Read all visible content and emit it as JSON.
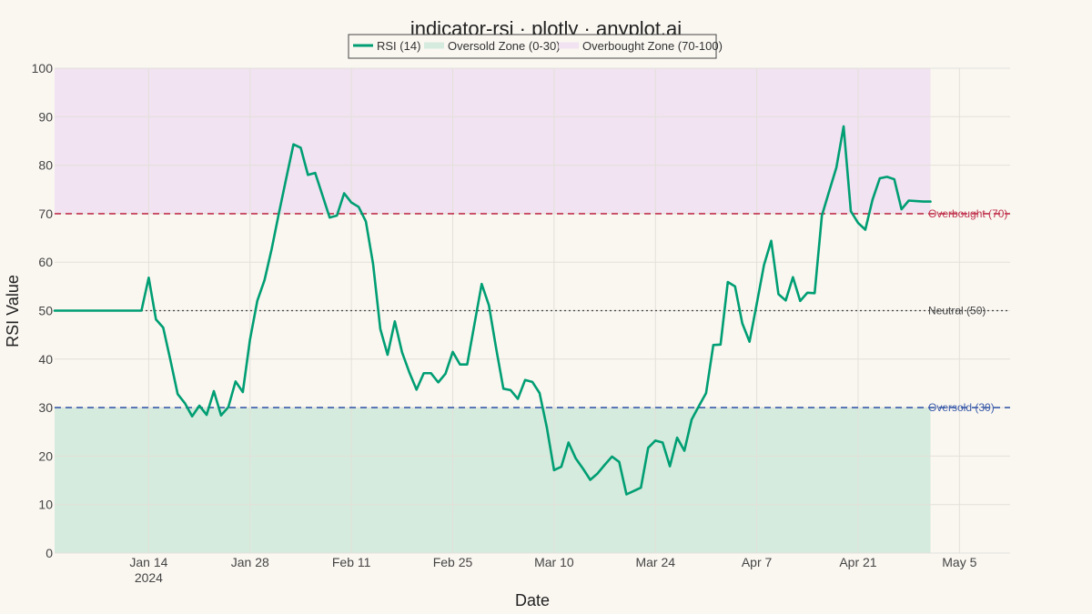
{
  "chart_data": {
    "type": "line",
    "title": "indicator-rsi · plotly · anyplot.ai",
    "xlabel": "Date",
    "ylabel": "RSI Value",
    "x_ticks": [
      {
        "date": "2024-01-14",
        "label": "Jan 14",
        "sublabel": "2024"
      },
      {
        "date": "2024-01-28",
        "label": "Jan 28"
      },
      {
        "date": "2024-02-11",
        "label": "Feb 11"
      },
      {
        "date": "2024-02-25",
        "label": "Feb 25"
      },
      {
        "date": "2024-03-10",
        "label": "Mar 10"
      },
      {
        "date": "2024-03-24",
        "label": "Mar 24"
      },
      {
        "date": "2024-04-07",
        "label": "Apr 7"
      },
      {
        "date": "2024-04-21",
        "label": "Apr 21"
      },
      {
        "date": "2024-05-05",
        "label": "May 5"
      }
    ],
    "xlim": [
      "2024-01-01",
      "2024-05-12"
    ],
    "ylim": [
      0,
      100
    ],
    "y_ticks": [
      0,
      10,
      20,
      30,
      40,
      50,
      60,
      70,
      80,
      90,
      100
    ],
    "grid": true,
    "legend": {
      "placement": "top-center",
      "entries": [
        {
          "label": "RSI (14)",
          "kind": "line",
          "color": "#009E73"
        },
        {
          "label": "Oversold Zone (0-30)",
          "kind": "fill",
          "color": "#D5EBDD"
        },
        {
          "label": "Overbought Zone (70-100)",
          "kind": "fill",
          "color": "#F1E3F1"
        }
      ]
    },
    "zones": [
      {
        "name": "Oversold Zone (0-30)",
        "y0": 0,
        "y1": 30,
        "x0": "2024-01-01",
        "x1": "2024-05-01",
        "color": "#D5EBDD"
      },
      {
        "name": "Overbought Zone (70-100)",
        "y0": 70,
        "y1": 100,
        "x0": "2024-01-01",
        "x1": "2024-05-01",
        "color": "#F1E3F1"
      }
    ],
    "reference_lines": [
      {
        "y": 70,
        "label": "Overbought (70)",
        "color": "#C0334D",
        "dash": "dashed"
      },
      {
        "y": 50,
        "label": "Neutral (50)",
        "color": "#444444",
        "dash": "dotted"
      },
      {
        "y": 30,
        "label": "Oversold (30)",
        "color": "#3B5BA9",
        "dash": "dashed"
      }
    ],
    "series": [
      {
        "name": "RSI (14)",
        "color": "#009E73",
        "dates": [
          "2024-01-01",
          "2024-01-02",
          "2024-01-03",
          "2024-01-04",
          "2024-01-05",
          "2024-01-06",
          "2024-01-07",
          "2024-01-08",
          "2024-01-09",
          "2024-01-10",
          "2024-01-11",
          "2024-01-12",
          "2024-01-13",
          "2024-01-14",
          "2024-01-15",
          "2024-01-16",
          "2024-01-17",
          "2024-01-18",
          "2024-01-19",
          "2024-01-20",
          "2024-01-21",
          "2024-01-22",
          "2024-01-23",
          "2024-01-24",
          "2024-01-25",
          "2024-01-26",
          "2024-01-27",
          "2024-01-28",
          "2024-01-29",
          "2024-01-30",
          "2024-01-31",
          "2024-02-01",
          "2024-02-02",
          "2024-02-03",
          "2024-02-04",
          "2024-02-05",
          "2024-02-06",
          "2024-02-07",
          "2024-02-08",
          "2024-02-09",
          "2024-02-10",
          "2024-02-11",
          "2024-02-12",
          "2024-02-13",
          "2024-02-14",
          "2024-02-15",
          "2024-02-16",
          "2024-02-17",
          "2024-02-18",
          "2024-02-19",
          "2024-02-20",
          "2024-02-21",
          "2024-02-22",
          "2024-02-23",
          "2024-02-24",
          "2024-02-25",
          "2024-02-26",
          "2024-02-27",
          "2024-02-28",
          "2024-02-29",
          "2024-03-01",
          "2024-03-02",
          "2024-03-03",
          "2024-03-04",
          "2024-03-05",
          "2024-03-06",
          "2024-03-07",
          "2024-03-08",
          "2024-03-09",
          "2024-03-10",
          "2024-03-11",
          "2024-03-12",
          "2024-03-13",
          "2024-03-14",
          "2024-03-15",
          "2024-03-16",
          "2024-03-17",
          "2024-03-18",
          "2024-03-19",
          "2024-03-20",
          "2024-03-21",
          "2024-03-22",
          "2024-03-23",
          "2024-03-24",
          "2024-03-25",
          "2024-03-26",
          "2024-03-27",
          "2024-03-28",
          "2024-03-29",
          "2024-03-30",
          "2024-03-31",
          "2024-04-01",
          "2024-04-02",
          "2024-04-03",
          "2024-04-04",
          "2024-04-05",
          "2024-04-06",
          "2024-04-07",
          "2024-04-08",
          "2024-04-09",
          "2024-04-10",
          "2024-04-11",
          "2024-04-12",
          "2024-04-13",
          "2024-04-14",
          "2024-04-15",
          "2024-04-16",
          "2024-04-17",
          "2024-04-18",
          "2024-04-19",
          "2024-04-20",
          "2024-04-21",
          "2024-04-22",
          "2024-04-23",
          "2024-04-24",
          "2024-04-25",
          "2024-04-26",
          "2024-04-27",
          "2024-04-28",
          "2024-04-29",
          "2024-04-30",
          "2024-05-01"
        ],
        "values": [
          50,
          50,
          50,
          50,
          50,
          50,
          50,
          50,
          50,
          50,
          50,
          50,
          50,
          56.8,
          48.2,
          46.5,
          39.8,
          32.8,
          30.9,
          28.2,
          30.4,
          28.5,
          33.4,
          28.4,
          30.1,
          35.4,
          33.2,
          44.1,
          52.0,
          56.3,
          62.8,
          70.2,
          77.3,
          84.3,
          83.6,
          78.0,
          78.4,
          73.8,
          69.2,
          69.6,
          74.2,
          72.3,
          71.4,
          68.4,
          59.6,
          46.2,
          40.9,
          47.8,
          41.4,
          37.3,
          33.7,
          37.1,
          37.1,
          35.2,
          37.0,
          41.5,
          38.9,
          38.9,
          47.2,
          55.5,
          51.1,
          42.2,
          33.9,
          33.6,
          31.8,
          35.7,
          35.3,
          33.0,
          25.9,
          17.1,
          17.8,
          22.8,
          19.5,
          17.4,
          15.1,
          16.4,
          18.2,
          19.9,
          18.8,
          12.1,
          12.8,
          13.5,
          21.7,
          23.2,
          22.8,
          17.9,
          23.8,
          21.1,
          27.5,
          30.3,
          33.0,
          42.9,
          43.0,
          55.9,
          55.0,
          47.4,
          43.6,
          51.4,
          59.4,
          64.4,
          53.4,
          52.1,
          56.9,
          52.0,
          53.7,
          53.6,
          69.6,
          74.6,
          79.5,
          88.0,
          70.5,
          68.1,
          66.7,
          72.9,
          77.3,
          77.6,
          77.1,
          70.9,
          72.7,
          72.6,
          72.5,
          72.5
        ]
      }
    ]
  },
  "colors": {
    "background": "#FAF7F1",
    "grid": "#E3E0DA",
    "rsi": "#009E73",
    "overbought": "#C0334D",
    "oversold": "#3B5BA9",
    "neutral": "#444444",
    "oversold_zone": "#D5EBDD",
    "overbought_zone": "#F1E3F1"
  }
}
